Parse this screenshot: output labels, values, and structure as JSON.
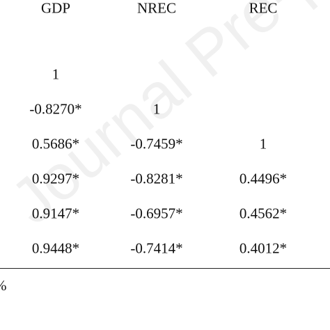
{
  "table": {
    "columns": [
      "GDP",
      "NREC",
      "REC"
    ],
    "rows": [
      [
        "1"
      ],
      [
        "-0.8270*",
        "1"
      ],
      [
        "0.5686*",
        "-0.7459*",
        "1"
      ],
      [
        "0.9297*",
        "-0.8281*",
        "0.4496*"
      ],
      [
        "0.9147*",
        "-0.6957*",
        "0.4562*"
      ],
      [
        "0.9448*",
        "-0.7414*",
        "0.4012*"
      ]
    ]
  },
  "footnote": "%",
  "watermark": "Journal Pre-proof"
}
